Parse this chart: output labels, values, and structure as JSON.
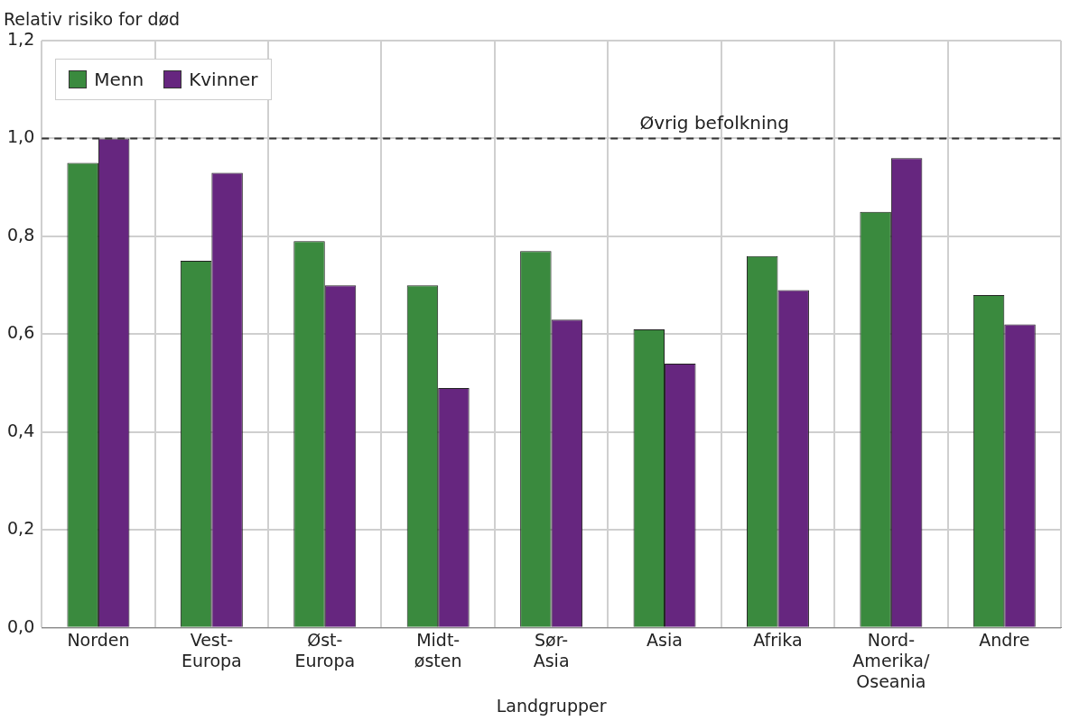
{
  "chart_data": {
    "type": "bar",
    "ylabel": "Relativ risiko for død",
    "xlabel": "Landgrupper",
    "categories": [
      "Norden",
      "Vest-\nEuropa",
      "Øst-\nEuropa",
      "Midt-\nøsten",
      "Sør-\nAsia",
      "Asia",
      "Afrika",
      "Nord-\nAmerika/\nOseania",
      "Andre"
    ],
    "series": [
      {
        "name": "Menn",
        "color": "#3a8a3e",
        "values": [
          0.95,
          0.75,
          0.79,
          0.7,
          0.77,
          0.61,
          0.76,
          0.85,
          0.68
        ]
      },
      {
        "name": "Kvinner",
        "color": "#66267f",
        "values": [
          1.0,
          0.93,
          0.7,
          0.49,
          0.63,
          0.54,
          0.69,
          0.96,
          0.62
        ]
      }
    ],
    "ylim": [
      0,
      1.2
    ],
    "yticks": [
      {
        "value": 0,
        "label": "0,0"
      },
      {
        "value": 0.2,
        "label": "0,2"
      },
      {
        "value": 0.4,
        "label": "0,4"
      },
      {
        "value": 0.6,
        "label": "0,6"
      },
      {
        "value": 0.8,
        "label": "0,8"
      },
      {
        "value": 1.0,
        "label": "1,0"
      },
      {
        "value": 1.2,
        "label": "1,2"
      }
    ],
    "grid": true,
    "legend": "top left",
    "ref_lines": [
      {
        "axis": "y",
        "value": 1.0,
        "label": "Øvrig befolkning",
        "line_style": "dashed",
        "color": "#333333"
      }
    ]
  }
}
